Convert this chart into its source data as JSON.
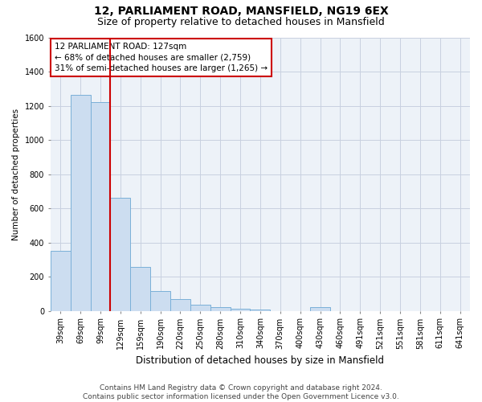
{
  "title": "12, PARLIAMENT ROAD, MANSFIELD, NG19 6EX",
  "subtitle": "Size of property relative to detached houses in Mansfield",
  "xlabel": "Distribution of detached houses by size in Mansfield",
  "ylabel": "Number of detached properties",
  "footnote": "Contains HM Land Registry data © Crown copyright and database right 2024.\nContains public sector information licensed under the Open Government Licence v3.0.",
  "categories": [
    "39sqm",
    "69sqm",
    "99sqm",
    "129sqm",
    "159sqm",
    "190sqm",
    "220sqm",
    "250sqm",
    "280sqm",
    "310sqm",
    "340sqm",
    "370sqm",
    "400sqm",
    "430sqm",
    "460sqm",
    "491sqm",
    "521sqm",
    "551sqm",
    "581sqm",
    "611sqm",
    "641sqm"
  ],
  "values": [
    350,
    1265,
    1220,
    660,
    255,
    115,
    68,
    35,
    22,
    12,
    10,
    0,
    0,
    20,
    0,
    0,
    0,
    0,
    0,
    0,
    0
  ],
  "bar_color": "#ccddf0",
  "bar_edge_color": "#7ab0d8",
  "vline_x_idx": 2,
  "vline_color": "#cc0000",
  "annotation_line1": "12 PARLIAMENT ROAD: 127sqm",
  "annotation_line2": "← 68% of detached houses are smaller (2,759)",
  "annotation_line3": "31% of semi-detached houses are larger (1,265) →",
  "annotation_box_color": "#cc0000",
  "ylim": [
    0,
    1600
  ],
  "yticks": [
    0,
    200,
    400,
    600,
    800,
    1000,
    1200,
    1400,
    1600
  ],
  "grid_color": "#c8d0e0",
  "bg_color": "#edf2f8",
  "title_fontsize": 10,
  "subtitle_fontsize": 9,
  "xlabel_fontsize": 8.5,
  "ylabel_fontsize": 7.5,
  "tick_fontsize": 7,
  "annotation_fontsize": 7.5,
  "footnote_fontsize": 6.5
}
